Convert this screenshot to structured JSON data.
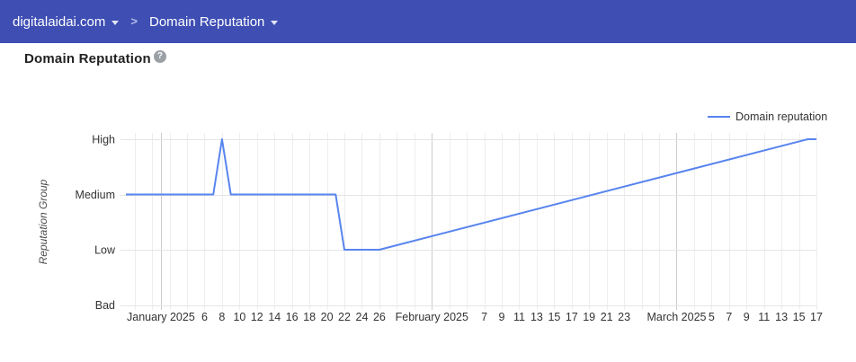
{
  "header": {
    "background_color": "#3e4eb3",
    "domain_selector_label": "digitalaidai.com",
    "breadcrumb_separator": ">",
    "page_selector_label": "Domain Reputation"
  },
  "page": {
    "title": "Domain Reputation",
    "help_icon_glyph": "?"
  },
  "chart_data": {
    "type": "line",
    "title": "Domain Reputation",
    "xlabel": "",
    "ylabel": "Reputation Group",
    "legend": {
      "position": "top-right",
      "entries": [
        {
          "label": "Domain reputation",
          "color": "#5784ee"
        }
      ]
    },
    "y_categories": [
      "Bad",
      "Low",
      "Medium",
      "High"
    ],
    "x_range": {
      "start": "2024-12-28",
      "end": "2025-03-17"
    },
    "month_ticks": [
      {
        "date": "2025-01-01",
        "label": "January 2025"
      },
      {
        "date": "2025-02-01",
        "label": "February 2025"
      },
      {
        "date": "2025-03-01",
        "label": "March 2025"
      }
    ],
    "day_ticks": [
      {
        "date": "2025-01-06",
        "label": "6"
      },
      {
        "date": "2025-01-08",
        "label": "8"
      },
      {
        "date": "2025-01-10",
        "label": "10"
      },
      {
        "date": "2025-01-12",
        "label": "12"
      },
      {
        "date": "2025-01-14",
        "label": "14"
      },
      {
        "date": "2025-01-16",
        "label": "16"
      },
      {
        "date": "2025-01-18",
        "label": "18"
      },
      {
        "date": "2025-01-20",
        "label": "20"
      },
      {
        "date": "2025-01-22",
        "label": "22"
      },
      {
        "date": "2025-01-24",
        "label": "24"
      },
      {
        "date": "2025-01-26",
        "label": "26"
      },
      {
        "date": "2025-02-07",
        "label": "7"
      },
      {
        "date": "2025-02-09",
        "label": "9"
      },
      {
        "date": "2025-02-11",
        "label": "11"
      },
      {
        "date": "2025-02-13",
        "label": "13"
      },
      {
        "date": "2025-02-15",
        "label": "15"
      },
      {
        "date": "2025-02-17",
        "label": "17"
      },
      {
        "date": "2025-02-19",
        "label": "19"
      },
      {
        "date": "2025-02-21",
        "label": "21"
      },
      {
        "date": "2025-02-23",
        "label": "23"
      },
      {
        "date": "2025-03-05",
        "label": "5"
      },
      {
        "date": "2025-03-07",
        "label": "7"
      },
      {
        "date": "2025-03-09",
        "label": "9"
      },
      {
        "date": "2025-03-11",
        "label": "11"
      },
      {
        "date": "2025-03-13",
        "label": "13"
      },
      {
        "date": "2025-03-15",
        "label": "15"
      },
      {
        "date": "2025-03-17",
        "label": "17"
      }
    ],
    "grid": {
      "minor_start": "2024-12-29",
      "minor_step_days": 2,
      "minor_color": "#eeeeee",
      "major_color": "#cccccc",
      "horizontal_color": "#e5e5e5"
    },
    "series": [
      {
        "name": "Domain reputation",
        "color": "#5784ee",
        "interpolation": "linear",
        "points": [
          {
            "date": "2024-12-28",
            "level": "Medium"
          },
          {
            "date": "2025-01-07",
            "level": "Medium"
          },
          {
            "date": "2025-01-08",
            "level": "High"
          },
          {
            "date": "2025-01-09",
            "level": "Medium"
          },
          {
            "date": "2025-01-21",
            "level": "Medium"
          },
          {
            "date": "2025-01-22",
            "level": "Low"
          },
          {
            "date": "2025-01-26",
            "level": "Low"
          },
          {
            "date": "2025-03-16",
            "level": "High"
          },
          {
            "date": "2025-03-17",
            "level": "High"
          }
        ]
      }
    ]
  }
}
